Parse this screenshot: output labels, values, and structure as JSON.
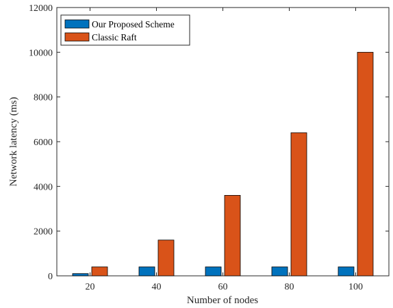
{
  "chart_data": {
    "type": "bar",
    "title": "",
    "xlabel": "Number of nodes",
    "ylabel": "Network latency (ms)",
    "categories": [
      "20",
      "40",
      "60",
      "80",
      "100"
    ],
    "series": [
      {
        "name": "Our Proposed Scheme",
        "values": [
          100,
          400,
          400,
          400,
          400
        ],
        "color": "#0072BD"
      },
      {
        "name": "Classic Raft",
        "values": [
          400,
          1600,
          3600,
          6400,
          10000
        ],
        "color": "#D95319"
      }
    ],
    "ylim": [
      0,
      12000
    ],
    "yticks": [
      0,
      2000,
      4000,
      6000,
      8000,
      10000,
      12000
    ],
    "grid": false,
    "legend_position": "top-left"
  }
}
